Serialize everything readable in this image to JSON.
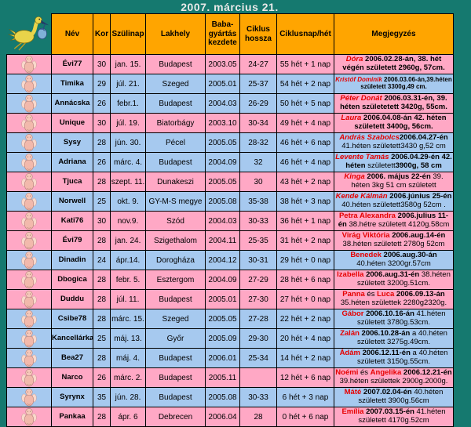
{
  "title": "2007. március 21.",
  "colors": {
    "background_teal": "#15796F",
    "header_orange": "#FFA500",
    "row_pink": "#FFA8C5",
    "row_blue": "#A6C9EF",
    "name_red": "#E60000",
    "border_black": "#000000",
    "title_text": "#E9E9E9"
  },
  "icons": {
    "stork": "stork-icon",
    "baby": "baby-icon"
  },
  "table": {
    "headers": [
      "Név",
      "Kor",
      "Szülinap",
      "Lakhely",
      "Baba-gyártás kezdete",
      "Ciklus hossza",
      "Ciklusnap/hét",
      "Megjegyzés"
    ],
    "rows": [
      {
        "nev": "Évi77",
        "kor": "30",
        "szulinap": "jan. 15.",
        "lakhely": "Budapest",
        "baba_kezdete": "2003.05",
        "ciklus_hossza": "24-27",
        "ciklusnap": "55 hét + 1 nap",
        "row_bg": "pink",
        "meg_bg": "pink",
        "meg_small": false,
        "megjegyzes": [
          {
            "t": "Dóra",
            "s": "ni"
          },
          {
            "t": " 2006.02.28-án, 38. hét végén született 2960g, 57cm.",
            "s": "b"
          }
        ]
      },
      {
        "nev": "Timika",
        "kor": "29",
        "szulinap": "júl. 21.",
        "lakhely": "Szeged",
        "baba_kezdete": "2005.01",
        "ciklus_hossza": "25-37",
        "ciklusnap": "54 hét + 2 nap",
        "row_bg": "blue",
        "meg_bg": "blue",
        "meg_small": true,
        "megjegyzes": [
          {
            "t": "Kristóf Dominik",
            "s": "ni"
          },
          {
            "t": " 2006.03.06-án,39.héten született 3300g,49 cm.",
            "s": "b"
          }
        ]
      },
      {
        "nev": "Annácska",
        "kor": "26",
        "szulinap": "febr.1.",
        "lakhely": "Budapest",
        "baba_kezdete": "2004.03",
        "ciklus_hossza": "26-29",
        "ciklusnap": "50 hét + 5 nap",
        "row_bg": "blue",
        "meg_bg": "pink",
        "meg_small": false,
        "megjegyzes": [
          {
            "t": "Péter Donát",
            "s": "ni"
          },
          {
            "t": " 2006.03.31-én, 39. héten születetett 3420g, 55cm.",
            "s": "b"
          }
        ]
      },
      {
        "nev": "Unique",
        "kor": "30",
        "szulinap": "júl. 19.",
        "lakhely": "Biatorbágy",
        "baba_kezdete": "2003.10",
        "ciklus_hossza": "30-34",
        "ciklusnap": "49 hét + 4 nap",
        "row_bg": "pink",
        "meg_bg": "pink",
        "meg_small": false,
        "megjegyzes": [
          {
            "t": "Laura",
            "s": "ni"
          },
          {
            "t": " 2006.04.08-án 42. héten született 3400g, 56cm.",
            "s": "b"
          }
        ]
      },
      {
        "nev": "Sysy",
        "kor": "28",
        "szulinap": "jún. 30.",
        "lakhely": "Pécel",
        "baba_kezdete": "2005.05",
        "ciklus_hossza": "28-32",
        "ciklusnap": "46 hét + 6 nap",
        "row_bg": "blue",
        "meg_bg": "blue",
        "meg_small": false,
        "megjegyzes": [
          {
            "t": "András Szabolcs",
            "s": "ni"
          },
          {
            "t": "2006.04.27-én",
            "s": "b"
          },
          {
            "t": " 41.héten született3430 g,52 cm",
            "s": "p"
          }
        ]
      },
      {
        "nev": "Adriana",
        "kor": "26",
        "szulinap": "márc. 4.",
        "lakhely": "Budapest",
        "baba_kezdete": "2004.09",
        "ciklus_hossza": "32",
        "ciklusnap": "46 hét + 4 nap",
        "row_bg": "blue",
        "meg_bg": "blue",
        "meg_small": false,
        "megjegyzes": [
          {
            "t": "Levente Tamás",
            "s": "ni"
          },
          {
            "t": " 2006.04.29-én 42. héten ",
            "s": "b"
          },
          {
            "t": "született",
            "s": "p"
          },
          {
            "t": "3900g, 58 cm",
            "s": "b"
          }
        ]
      },
      {
        "nev": "Tjuca",
        "kor": "28",
        "szulinap": "szept. 11.",
        "lakhely": "Dunakeszi",
        "baba_kezdete": "2005.05",
        "ciklus_hossza": "30",
        "ciklusnap": "43 hét + 2 nap",
        "row_bg": "pink",
        "meg_bg": "pink",
        "meg_small": false,
        "megjegyzes": [
          {
            "t": "Kinga",
            "s": "ni"
          },
          {
            "t": " 2006. május 22-én",
            "s": "b"
          },
          {
            "t": " 39. héten 3kg 51 cm született",
            "s": "p"
          }
        ]
      },
      {
        "nev": "Norwell",
        "kor": "25",
        "szulinap": "okt. 9.",
        "lakhely": "GY-M-S megye",
        "baba_kezdete": "2005.08",
        "ciklus_hossza": "35-38",
        "ciklusnap": "38 hét + 3 nap",
        "row_bg": "blue",
        "meg_bg": "blue",
        "meg_small": false,
        "megjegyzes": [
          {
            "t": "Kende Kálmán",
            "s": "ni"
          },
          {
            "t": " 2006.június 25-én",
            "s": "b"
          },
          {
            "t": " 40.héten született3580g 52cm .",
            "s": "p"
          }
        ]
      },
      {
        "nev": "Kati76",
        "kor": "30",
        "szulinap": "nov.9.",
        "lakhely": "Szód",
        "baba_kezdete": "2004.03",
        "ciklus_hossza": "30-33",
        "ciklusnap": "36 hét + 1 nap",
        "row_bg": "pink",
        "meg_bg": "pink",
        "meg_small": false,
        "megjegyzes": [
          {
            "t": "Petra Alexandra",
            "s": "n"
          },
          {
            "t": " 2006.julius 11-én",
            "s": "b"
          },
          {
            "t": " 38.hétre született 4120g.58cm",
            "s": "p"
          }
        ]
      },
      {
        "nev": "Évi79",
        "kor": "28",
        "szulinap": "jan. 24.",
        "lakhely": "Szigethalom",
        "baba_kezdete": "2004.11",
        "ciklus_hossza": "25-35",
        "ciklusnap": "31 hét + 2 nap",
        "row_bg": "pink",
        "meg_bg": "pink",
        "meg_small": false,
        "megjegyzes": [
          {
            "t": "Virág Viktória",
            "s": "n"
          },
          {
            "t": " 2006.aug.14-én",
            "s": "b"
          },
          {
            "t": " 38.héten született 2780g 52cm",
            "s": "p"
          }
        ]
      },
      {
        "nev": "Dinadin",
        "kor": "24",
        "szulinap": "ápr.14.",
        "lakhely": "Dorogháza",
        "baba_kezdete": "2004.12",
        "ciklus_hossza": "30-31",
        "ciklusnap": "29 hét + 0 nap",
        "row_bg": "blue",
        "meg_bg": "blue",
        "meg_small": false,
        "megjegyzes": [
          {
            "t": "Benedek",
            "s": "n"
          },
          {
            "t": " 2006.aug.30-án",
            "s": "b"
          },
          {
            "t": " 40.héten 3200gr.57cm",
            "s": "p"
          }
        ]
      },
      {
        "nev": "Dbogica",
        "kor": "28",
        "szulinap": "febr. 5.",
        "lakhely": "Esztergom",
        "baba_kezdete": "2004.09",
        "ciklus_hossza": "27-29",
        "ciklusnap": "28 hét + 6 nap",
        "row_bg": "pink",
        "meg_bg": "pink",
        "meg_small": false,
        "megjegyzes": [
          {
            "t": "Izabella",
            "s": "n"
          },
          {
            "t": " 2006.aug.31-én",
            "s": "b"
          },
          {
            "t": " 38.héten született 3200g.51cm.",
            "s": "p"
          }
        ]
      },
      {
        "nev": "Duddu",
        "kor": "28",
        "szulinap": "júl. 11.",
        "lakhely": "Budapest",
        "baba_kezdete": "2005.01",
        "ciklus_hossza": "27-30",
        "ciklusnap": "27 hét + 0 nap",
        "row_bg": "pink",
        "meg_bg": "pink",
        "meg_small": false,
        "megjegyzes": [
          {
            "t": "Panna",
            "s": "n"
          },
          {
            "t": " és ",
            "s": "p"
          },
          {
            "t": "Luca",
            "s": "n"
          },
          {
            "t": " 2006.09.13-án",
            "s": "b"
          },
          {
            "t": " 35.héten születtek 2280g2320g.",
            "s": "p"
          }
        ]
      },
      {
        "nev": "Csibe78",
        "kor": "28",
        "szulinap": "márc. 15.",
        "lakhely": "Szeged",
        "baba_kezdete": "2005.05",
        "ciklus_hossza": "27-28",
        "ciklusnap": "22 hét + 2 nap",
        "row_bg": "blue",
        "meg_bg": "blue",
        "meg_small": false,
        "megjegyzes": [
          {
            "t": "Gábor",
            "s": "n"
          },
          {
            "t": " 2006.10.16-án",
            "s": "b"
          },
          {
            "t": " 41.héten született 3780g.53cm.",
            "s": "p"
          }
        ]
      },
      {
        "nev": "Kancellárka",
        "kor": "25",
        "szulinap": "máj. 13.",
        "lakhely": "Győr",
        "baba_kezdete": "2005.09",
        "ciklus_hossza": "29-30",
        "ciklusnap": "20 hét + 4 nap",
        "row_bg": "blue",
        "meg_bg": "blue",
        "meg_small": false,
        "megjegyzes": [
          {
            "t": "Zalán",
            "s": "n"
          },
          {
            "t": " 2006.10.28-án",
            "s": "b"
          },
          {
            "t": " a 40.héten született 3275g.49cm.",
            "s": "p"
          }
        ]
      },
      {
        "nev": "Bea27",
        "kor": "28",
        "szulinap": "máj. 4.",
        "lakhely": "Budapest",
        "baba_kezdete": "2006.01",
        "ciklus_hossza": "25-34",
        "ciklusnap": "14 hét + 2 nap",
        "row_bg": "blue",
        "meg_bg": "blue",
        "meg_small": false,
        "megjegyzes": [
          {
            "t": "Ádám",
            "s": "n"
          },
          {
            "t": " 2006.12.11-én",
            "s": "b"
          },
          {
            "t": " a 40.héten született 3150g.55cm.",
            "s": "p"
          }
        ]
      },
      {
        "nev": "Narco",
        "kor": "26",
        "szulinap": "márc. 2.",
        "lakhely": "Budapest",
        "baba_kezdete": "2005.11",
        "ciklus_hossza": "",
        "ciklusnap": "12 hét + 6 nap",
        "row_bg": "pink",
        "meg_bg": "pink",
        "meg_small": false,
        "megjegyzes": [
          {
            "t": "Noémi",
            "s": "n"
          },
          {
            "t": " és ",
            "s": "p"
          },
          {
            "t": "Angelika",
            "s": "n"
          },
          {
            "t": " 2006.12.21-én",
            "s": "b"
          },
          {
            "t": " 39.héten születtek 2900g.2000g.",
            "s": "p"
          }
        ]
      },
      {
        "nev": "Syrynx",
        "kor": "35",
        "szulinap": "jún. 28.",
        "lakhely": "Budapest",
        "baba_kezdete": "2005.08",
        "ciklus_hossza": "30-33",
        "ciklusnap": "6 hét + 3 nap",
        "row_bg": "blue",
        "meg_bg": "blue",
        "meg_small": false,
        "megjegyzes": [
          {
            "t": "Máté",
            "s": "n"
          },
          {
            "t": " 2007.02.04-én",
            "s": "b"
          },
          {
            "t": " 40.héten született 3900g.56cm",
            "s": "p"
          }
        ]
      },
      {
        "nev": "Pankaa",
        "kor": "28",
        "szulinap": "ápr. 6",
        "lakhely": "Debrecen",
        "baba_kezdete": "2006.04",
        "ciklus_hossza": "28",
        "ciklusnap": "0 hét + 6 nap",
        "row_bg": "pink",
        "meg_bg": "pink",
        "meg_small": false,
        "megjegyzes": [
          {
            "t": "Emília",
            "s": "n"
          },
          {
            "t": " 2007.03.15-én",
            "s": "b"
          },
          {
            "t": " 41.héten született 4170g.52cm",
            "s": "p"
          }
        ]
      }
    ]
  }
}
